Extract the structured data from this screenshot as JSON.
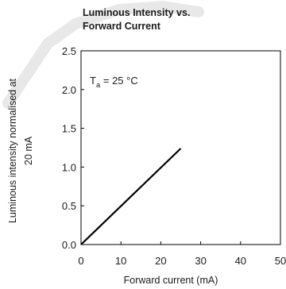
{
  "chart_data": {
    "type": "line",
    "title": [
      "Luminous Intensity vs.",
      "Forward Current"
    ],
    "xlabel": "Forward current (mA)",
    "ylabel": [
      "Luminous intensity normalised at",
      "20 mA"
    ],
    "xlim": [
      0,
      50
    ],
    "ylim": [
      0,
      2.5
    ],
    "xticks": [
      "0",
      "10",
      "20",
      "30",
      "40",
      "50"
    ],
    "yticks": [
      "0.0",
      "0.5",
      "1.0",
      "1.5",
      "2.0",
      "2.5"
    ],
    "grid": false,
    "annotation": {
      "main": "T",
      "sub": "a",
      "rest": " = 25 °C"
    },
    "series": [
      {
        "x": [
          0,
          25
        ],
        "y": [
          0,
          1.24
        ],
        "color": "#000000"
      }
    ]
  }
}
